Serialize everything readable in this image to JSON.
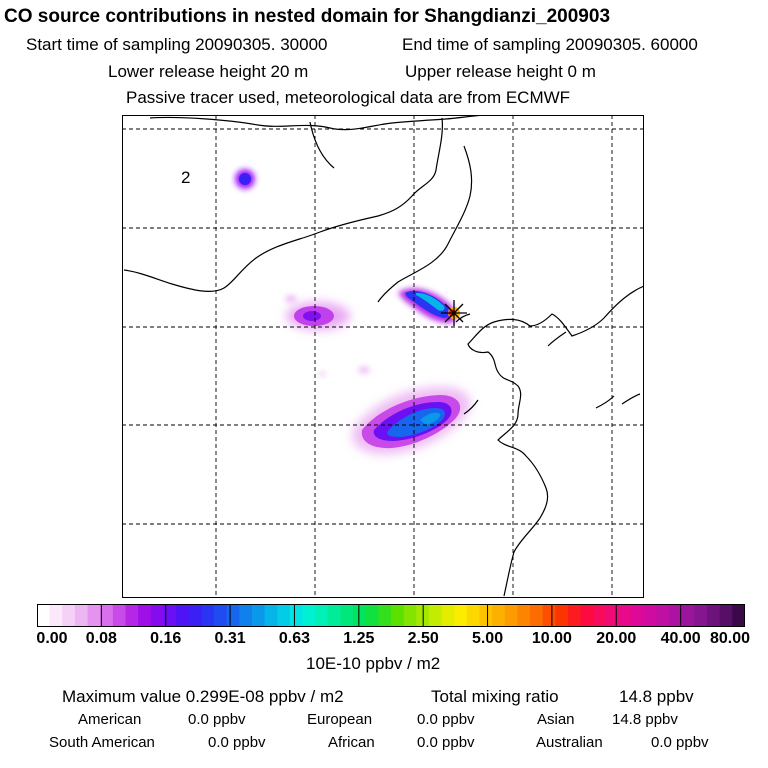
{
  "header": {
    "title": "CO  source contributions in nested domain for Shangdianzi_200903",
    "start_label": "Start time of sampling 20090305. 30000",
    "end_label": "End time of sampling 20090305. 60000",
    "lower_label": "Lower release height   20 m",
    "upper_label": "Upper release height    0 m",
    "tracer_note": "Passive tracer used, meteorological data are from ECMWF"
  },
  "map": {
    "region_label": "2",
    "colors": {
      "frame": "#000000",
      "gridlines": "#000000",
      "coast": "#000000",
      "marker": "#000000"
    }
  },
  "colorbar": {
    "tick_labels": [
      "0.00",
      "0.08",
      "0.16",
      "0.31",
      "0.63",
      "1.25",
      "2.50",
      "5.00",
      "10.00",
      "20.00",
      "40.00",
      "80.00"
    ],
    "units": "10E-10 ppbv / m2",
    "colors": [
      "#ffffff",
      "#fbe8fb",
      "#f5d0f7",
      "#eeb5f3",
      "#e493ef",
      "#d870ec",
      "#c84ae9",
      "#b626e6",
      "#9f10e9",
      "#860cee",
      "#6a10f2",
      "#4e14f5",
      "#3a20f5",
      "#2a34f3",
      "#1e4cf0",
      "#1666ee",
      "#1080ec",
      "#0a99ea",
      "#06b4e8",
      "#02cce6",
      "#00e4e4",
      "#00f0d2",
      "#00f0b6",
      "#00ec98",
      "#00e87c",
      "#00e45e",
      "#10e040",
      "#34e01c",
      "#5ce000",
      "#84e400",
      "#a4e800",
      "#c4ec00",
      "#e4ec00",
      "#fcec00",
      "#fcd800",
      "#fcc400",
      "#fcb000",
      "#fc9c00",
      "#fc8400",
      "#fc6c00",
      "#fc5000",
      "#fc3400",
      "#fc1c20",
      "#fc0a40",
      "#f80a5c",
      "#f00a76",
      "#e80a88",
      "#dc0a96",
      "#d00ca0",
      "#c010a4",
      "#ae12a2",
      "#9a149c",
      "#861690",
      "#6e127c",
      "#560e66",
      "#3a0a48"
    ]
  },
  "stats": {
    "max_label": "Maximum value  0.299E-08 ppbv / m2",
    "total_label": "Total mixing ratio",
    "total_value": "14.8 ppbv",
    "sources": [
      {
        "name": "American",
        "value": "0.0 ppbv"
      },
      {
        "name": "European",
        "value": "0.0 ppbv"
      },
      {
        "name": "Asian",
        "value": "14.8 ppbv"
      },
      {
        "name": "South American",
        "value": "0.0 ppbv"
      },
      {
        "name": "African",
        "value": "0.0 ppbv"
      },
      {
        "name": "Australian",
        "value": "0.0 ppbv"
      }
    ]
  }
}
